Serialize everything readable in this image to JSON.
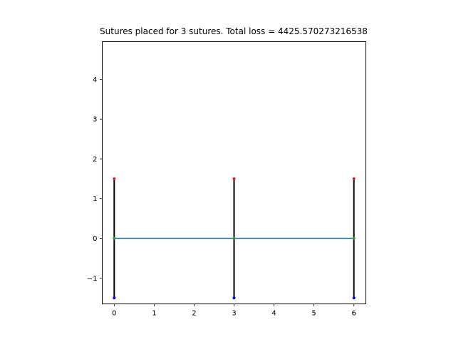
{
  "chart_data": {
    "type": "line",
    "title": "Sutures placed for 3 sutures. Total loss = 4425.570273216538",
    "xlabel": "",
    "ylabel": "",
    "xlim": [
      -0.3,
      6.3
    ],
    "ylim": [
      -1.65,
      4.95
    ],
    "x_ticks": [
      0,
      1,
      2,
      3,
      4,
      5,
      6
    ],
    "y_ticks": [
      -1,
      0,
      1,
      2,
      3,
      4
    ],
    "grid": false,
    "wound_line": {
      "color": "#1f77b4",
      "x": [
        0,
        3,
        6
      ],
      "y": [
        0,
        0,
        0
      ]
    },
    "sutures": [
      {
        "x": 0,
        "y_top": 1.5,
        "y_bottom": -1.5,
        "y_center": 0
      },
      {
        "x": 3,
        "y_top": 1.5,
        "y_bottom": -1.5,
        "y_center": 0
      },
      {
        "x": 6,
        "y_top": 1.5,
        "y_bottom": -1.5,
        "y_center": 0
      }
    ],
    "colors": {
      "suture_line": "#000000",
      "top_point": "#d62728",
      "bottom_point": "#0000ff",
      "center_point": "#2ca02c"
    }
  }
}
